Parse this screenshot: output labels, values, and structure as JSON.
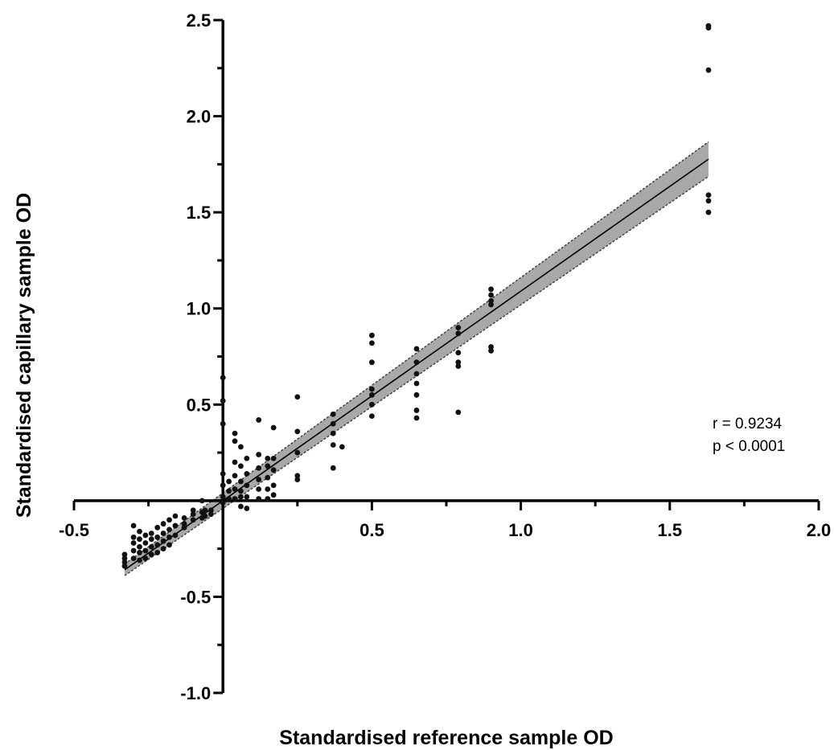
{
  "chart_data": {
    "type": "scatter",
    "title": "",
    "xlabel": "Standardised reference sample OD",
    "ylabel": "Standardised capillary sample OD",
    "xlim": [
      -0.5,
      2.0
    ],
    "ylim": [
      -1.0,
      2.5
    ],
    "xticks": [
      "-0.5",
      "0.5",
      "1.0",
      "1.5",
      "2.0"
    ],
    "yticks": [
      "-1.0",
      "-0.5",
      "0.5",
      "1.0",
      "1.5",
      "2.0",
      "2.5"
    ],
    "grid": false,
    "legend": "none",
    "annotations": [
      "r = 0.9234",
      "p < 0.0001"
    ],
    "regression": {
      "slope": 1.09,
      "intercept": 0.0,
      "x_range": [
        -0.33,
        1.63
      ],
      "ci_band_halfwidth_at_ends": [
        0.03,
        0.09
      ]
    },
    "points": [
      [
        -0.33,
        -0.28
      ],
      [
        -0.33,
        -0.3
      ],
      [
        -0.33,
        -0.32
      ],
      [
        -0.33,
        -0.34
      ],
      [
        -0.3,
        -0.13
      ],
      [
        -0.3,
        -0.19
      ],
      [
        -0.3,
        -0.22
      ],
      [
        -0.3,
        -0.26
      ],
      [
        -0.3,
        -0.3
      ],
      [
        -0.28,
        -0.16
      ],
      [
        -0.28,
        -0.2
      ],
      [
        -0.28,
        -0.24
      ],
      [
        -0.28,
        -0.27
      ],
      [
        -0.28,
        -0.31
      ],
      [
        -0.26,
        -0.18
      ],
      [
        -0.26,
        -0.22
      ],
      [
        -0.26,
        -0.26
      ],
      [
        -0.26,
        -0.3
      ],
      [
        -0.24,
        -0.17
      ],
      [
        -0.24,
        -0.2
      ],
      [
        -0.24,
        -0.24
      ],
      [
        -0.24,
        -0.28
      ],
      [
        -0.22,
        -0.14
      ],
      [
        -0.22,
        -0.19
      ],
      [
        -0.22,
        -0.23
      ],
      [
        -0.22,
        -0.27
      ],
      [
        -0.2,
        -0.12
      ],
      [
        -0.2,
        -0.17
      ],
      [
        -0.2,
        -0.21
      ],
      [
        -0.2,
        -0.25
      ],
      [
        -0.18,
        -0.1
      ],
      [
        -0.18,
        -0.15
      ],
      [
        -0.18,
        -0.19
      ],
      [
        -0.18,
        -0.23
      ],
      [
        -0.16,
        -0.08
      ],
      [
        -0.16,
        -0.13
      ],
      [
        -0.16,
        -0.18
      ],
      [
        -0.13,
        -0.09
      ],
      [
        -0.13,
        -0.12
      ],
      [
        -0.13,
        -0.14
      ],
      [
        -0.1,
        -0.05
      ],
      [
        -0.1,
        -0.07
      ],
      [
        -0.1,
        -0.1
      ],
      [
        -0.07,
        0.0
      ],
      [
        -0.07,
        -0.06
      ],
      [
        -0.07,
        -0.09
      ],
      [
        -0.06,
        -0.05
      ],
      [
        -0.06,
        -0.08
      ],
      [
        -0.04,
        -0.05
      ],
      [
        -0.04,
        -0.07
      ],
      [
        0.0,
        0.64
      ],
      [
        0.0,
        0.52
      ],
      [
        0.0,
        0.4
      ],
      [
        0.0,
        0.14
      ],
      [
        0.0,
        0.08
      ],
      [
        0.0,
        0.02
      ],
      [
        0.0,
        -0.01
      ],
      [
        0.02,
        0.1
      ],
      [
        0.02,
        0.05
      ],
      [
        0.02,
        0.01
      ],
      [
        0.04,
        0.35
      ],
      [
        0.04,
        0.31
      ],
      [
        0.04,
        0.2
      ],
      [
        0.04,
        0.13
      ],
      [
        0.04,
        0.06
      ],
      [
        0.04,
        0.01
      ],
      [
        0.06,
        0.28
      ],
      [
        0.06,
        0.18
      ],
      [
        0.06,
        0.1
      ],
      [
        0.06,
        0.05
      ],
      [
        0.06,
        0.02
      ],
      [
        0.06,
        -0.03
      ],
      [
        0.08,
        0.22
      ],
      [
        0.08,
        0.14
      ],
      [
        0.08,
        0.08
      ],
      [
        0.08,
        0.02
      ],
      [
        0.08,
        -0.04
      ],
      [
        0.12,
        0.42
      ],
      [
        0.12,
        0.24
      ],
      [
        0.12,
        0.17
      ],
      [
        0.12,
        0.11
      ],
      [
        0.12,
        0.06
      ],
      [
        0.12,
        0.01
      ],
      [
        0.15,
        0.22
      ],
      [
        0.15,
        0.18
      ],
      [
        0.15,
        0.12
      ],
      [
        0.15,
        0.06
      ],
      [
        0.15,
        0.01
      ],
      [
        0.17,
        0.38
      ],
      [
        0.17,
        0.22
      ],
      [
        0.17,
        0.16
      ],
      [
        0.17,
        0.08
      ],
      [
        0.17,
        0.03
      ],
      [
        0.25,
        0.54
      ],
      [
        0.25,
        0.36
      ],
      [
        0.25,
        0.25
      ],
      [
        0.25,
        0.13
      ],
      [
        0.25,
        0.11
      ],
      [
        0.37,
        0.45
      ],
      [
        0.37,
        0.4
      ],
      [
        0.37,
        0.35
      ],
      [
        0.37,
        0.29
      ],
      [
        0.37,
        0.17
      ],
      [
        0.4,
        0.28
      ],
      [
        0.5,
        0.86
      ],
      [
        0.5,
        0.82
      ],
      [
        0.5,
        0.72
      ],
      [
        0.5,
        0.58
      ],
      [
        0.5,
        0.55
      ],
      [
        0.5,
        0.5
      ],
      [
        0.5,
        0.44
      ],
      [
        0.65,
        0.79
      ],
      [
        0.65,
        0.72
      ],
      [
        0.65,
        0.66
      ],
      [
        0.65,
        0.61
      ],
      [
        0.65,
        0.55
      ],
      [
        0.65,
        0.47
      ],
      [
        0.65,
        0.43
      ],
      [
        0.79,
        0.9
      ],
      [
        0.79,
        0.87
      ],
      [
        0.79,
        0.77
      ],
      [
        0.79,
        0.72
      ],
      [
        0.79,
        0.7
      ],
      [
        0.79,
        0.46
      ],
      [
        0.9,
        1.1
      ],
      [
        0.9,
        1.07
      ],
      [
        0.9,
        1.04
      ],
      [
        0.9,
        1.02
      ],
      [
        0.9,
        0.8
      ],
      [
        0.9,
        0.78
      ],
      [
        1.63,
        2.47
      ],
      [
        1.63,
        2.46
      ],
      [
        1.63,
        2.24
      ],
      [
        1.63,
        1.59
      ],
      [
        1.63,
        1.56
      ],
      [
        1.63,
        1.5
      ]
    ]
  }
}
